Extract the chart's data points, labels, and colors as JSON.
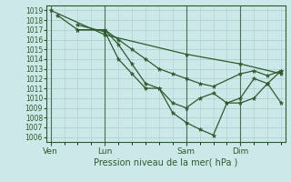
{
  "title": "Pression niveau de la mer( hPa )",
  "ylim": [
    1005.5,
    1019.5
  ],
  "yticks": [
    1006,
    1007,
    1008,
    1009,
    1010,
    1011,
    1012,
    1013,
    1014,
    1015,
    1016,
    1017,
    1018,
    1019
  ],
  "bg_color": "#cce8e8",
  "grid_color": "#aacccc",
  "line_color": "#2d5a2d",
  "xtick_labels": [
    "Ven",
    "Lun",
    "Sam",
    "Dim"
  ],
  "xtick_positions": [
    0,
    4,
    10,
    14
  ],
  "xlim": [
    -0.3,
    17.3
  ],
  "series": [
    {
      "x": [
        0,
        4,
        10,
        14,
        17
      ],
      "y": [
        1019,
        1016.5,
        1014.5,
        1013.5,
        1012.5
      ]
    },
    {
      "x": [
        0.5,
        2,
        4,
        5,
        6,
        7,
        8,
        9,
        10,
        11,
        12,
        14,
        15,
        16,
        17
      ],
      "y": [
        1018.5,
        1017,
        1017,
        1016,
        1015,
        1014,
        1013,
        1012.5,
        1012,
        1011.5,
        1011.2,
        1012.5,
        1012.8,
        1012.3,
        1012.8
      ]
    },
    {
      "x": [
        2,
        4,
        5,
        6,
        7,
        8,
        9,
        10,
        11,
        12,
        13,
        14,
        15,
        16,
        17
      ],
      "y": [
        1017,
        1017,
        1015.5,
        1013.5,
        1011.5,
        1011,
        1009.5,
        1009,
        1010,
        1010.5,
        1009.5,
        1009.5,
        1010,
        1011.5,
        1009.5
      ]
    },
    {
      "x": [
        2,
        4,
        5,
        6,
        7,
        8,
        9,
        10,
        11,
        12,
        13,
        14,
        15,
        16,
        17
      ],
      "y": [
        1017.5,
        1016.8,
        1014,
        1012.5,
        1011,
        1011,
        1008.5,
        1007.5,
        1006.8,
        1006.2,
        1009.5,
        1010,
        1012,
        1011.5,
        1012.8
      ]
    }
  ]
}
